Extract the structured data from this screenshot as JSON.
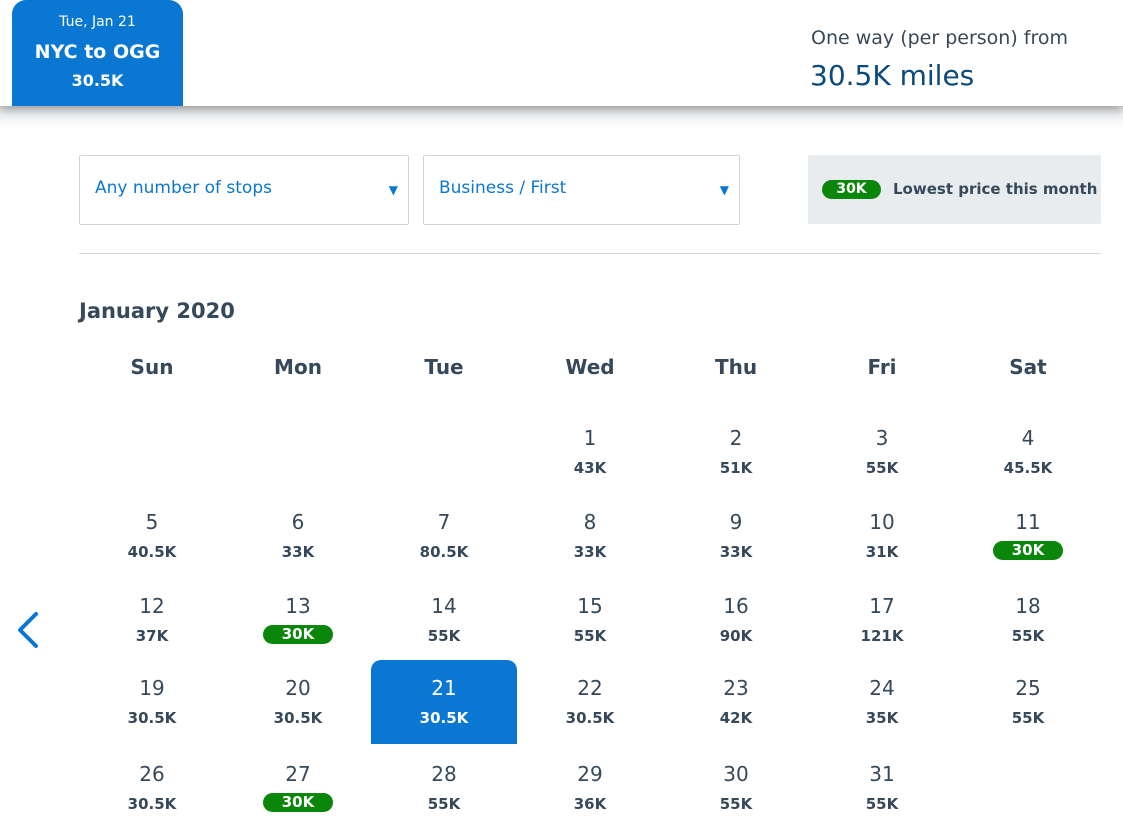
{
  "header": {
    "tab": {
      "date": "Tue, Jan 21",
      "route": "NYC to OGG",
      "price": "30.5K"
    },
    "fare_label": "One way (per person) from",
    "fare_value": "30.5K miles"
  },
  "filters": {
    "stops": "Any number of stops",
    "cabin": "Business / First"
  },
  "legend": {
    "pill": "30K",
    "text": "Lowest price this month"
  },
  "calendar": {
    "month": "January 2020",
    "weekdays": [
      "Sun",
      "Mon",
      "Tue",
      "Wed",
      "Thu",
      "Fri",
      "Sat"
    ],
    "days": [
      {
        "num": "1",
        "price": "43K"
      },
      {
        "num": "2",
        "price": "51K"
      },
      {
        "num": "3",
        "price": "55K"
      },
      {
        "num": "4",
        "price": "45.5K"
      },
      {
        "num": "5",
        "price": "40.5K"
      },
      {
        "num": "6",
        "price": "33K"
      },
      {
        "num": "7",
        "price": "80.5K"
      },
      {
        "num": "8",
        "price": "33K"
      },
      {
        "num": "9",
        "price": "33K"
      },
      {
        "num": "10",
        "price": "31K"
      },
      {
        "num": "11",
        "price": "30K",
        "lowest": true
      },
      {
        "num": "12",
        "price": "37K"
      },
      {
        "num": "13",
        "price": "30K",
        "lowest": true
      },
      {
        "num": "14",
        "price": "55K"
      },
      {
        "num": "15",
        "price": "55K"
      },
      {
        "num": "16",
        "price": "90K"
      },
      {
        "num": "17",
        "price": "121K"
      },
      {
        "num": "18",
        "price": "55K"
      },
      {
        "num": "19",
        "price": "30.5K"
      },
      {
        "num": "20",
        "price": "30.5K"
      },
      {
        "num": "21",
        "price": "30.5K",
        "selected": true
      },
      {
        "num": "22",
        "price": "30.5K"
      },
      {
        "num": "23",
        "price": "42K"
      },
      {
        "num": "24",
        "price": "35K"
      },
      {
        "num": "25",
        "price": "55K"
      },
      {
        "num": "26",
        "price": "30.5K"
      },
      {
        "num": "27",
        "price": "30K",
        "lowest": true
      },
      {
        "num": "28",
        "price": "55K"
      },
      {
        "num": "29",
        "price": "36K"
      },
      {
        "num": "30",
        "price": "55K"
      },
      {
        "num": "31",
        "price": "55K"
      }
    ]
  },
  "icons": {
    "prev": "chevron-left-icon",
    "dropdown": "caret-down-icon"
  },
  "colors": {
    "accent": "#0a78d2",
    "lowest": "#0a870a",
    "text": "#36495a"
  }
}
